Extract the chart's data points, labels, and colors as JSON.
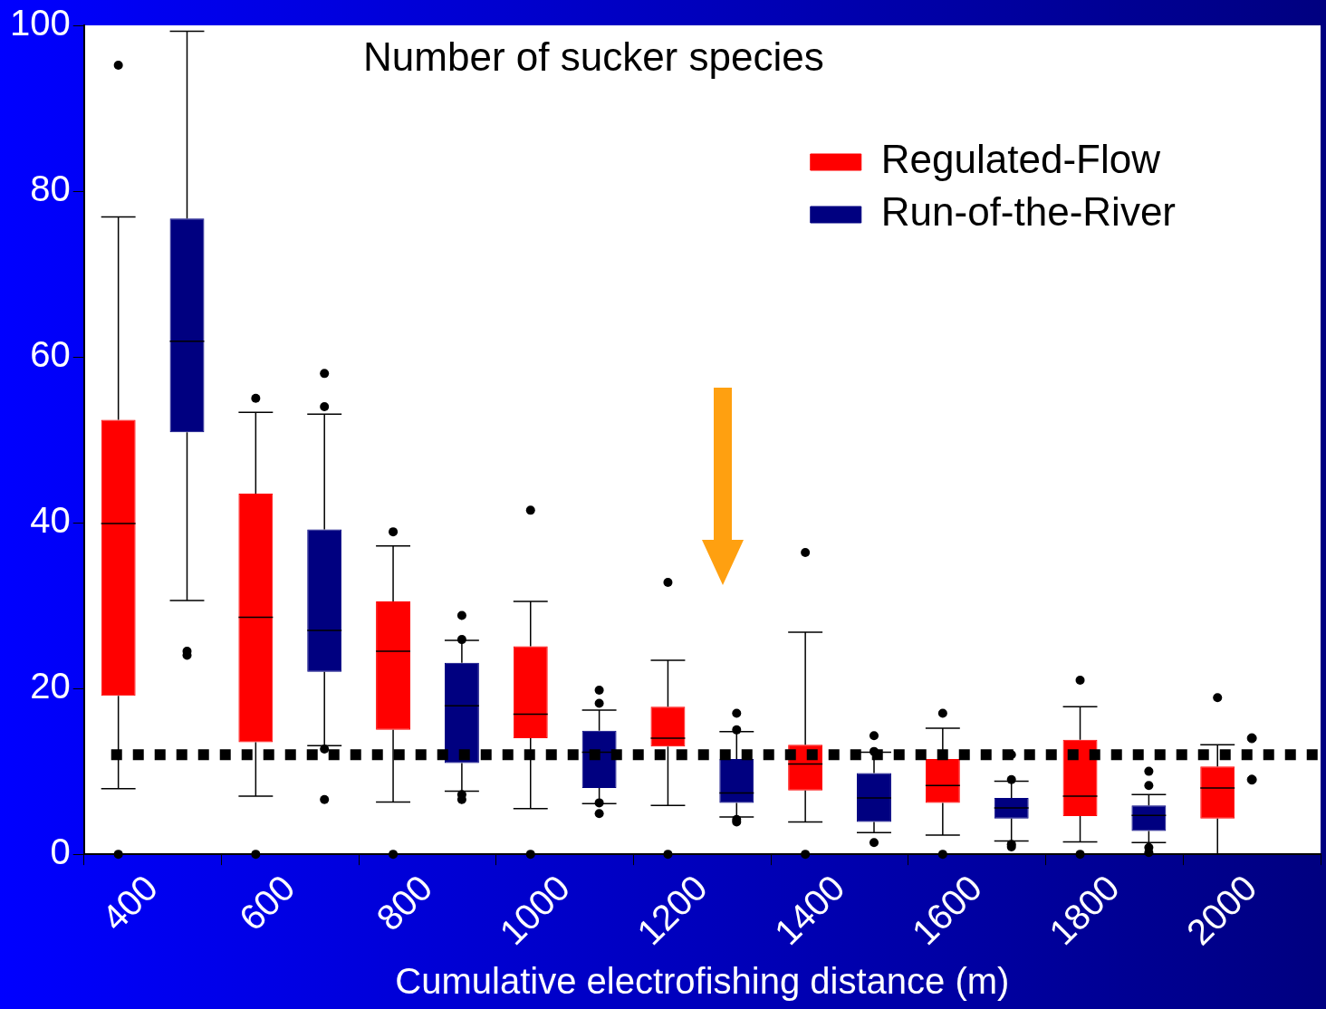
{
  "chart_data": {
    "type": "box",
    "title": "Number of sucker species",
    "xlabel": "Cumulative electrofishing distance (m)",
    "categories": [
      "400",
      "600",
      "800",
      "1000",
      "1200",
      "1400",
      "1600",
      "1800",
      "2000"
    ],
    "series": [
      {
        "name": "Regulated-Flow",
        "color": "#ff0000",
        "boxes": [
          {
            "low": 7.9,
            "q1": 19.1,
            "median": 39.9,
            "q3": 52.4,
            "high": 76.9,
            "outliers": [
              95.2,
              0
            ]
          },
          {
            "low": 7,
            "q1": 13.5,
            "median": 28.6,
            "q3": 43.5,
            "high": 53.3,
            "outliers": [
              55,
              0
            ]
          },
          {
            "low": 6.3,
            "q1": 15,
            "median": 24.5,
            "q3": 30.5,
            "high": 37.2,
            "outliers": [
              38.9,
              0
            ]
          },
          {
            "low": 5.5,
            "q1": 14,
            "median": 16.9,
            "q3": 25.1,
            "high": 30.5,
            "outliers": [
              41.5,
              0
            ]
          },
          {
            "low": 5.9,
            "q1": 13,
            "median": 14,
            "q3": 17.8,
            "high": 23.4,
            "outliers": [
              32.8,
              0
            ]
          },
          {
            "low": 3.9,
            "q1": 7.7,
            "median": 10.9,
            "q3": 13.2,
            "high": 26.8,
            "outliers": [
              36.4,
              0
            ]
          },
          {
            "low": 2.3,
            "q1": 6.2,
            "median": 8.3,
            "q3": 11.5,
            "high": 15.2,
            "outliers": [
              17,
              0
            ]
          },
          {
            "low": 1.5,
            "q1": 4.6,
            "median": 7,
            "q3": 13.8,
            "high": 17.8,
            "outliers": [
              21,
              0
            ]
          },
          {
            "low": 0,
            "q1": 4.3,
            "median": 8,
            "q3": 10.6,
            "high": 13.2,
            "outliers": [
              18.9
            ]
          }
        ]
      },
      {
        "name": "Run-of-the-River",
        "color": "#000080",
        "boxes": [
          {
            "low": 30.6,
            "q1": 50.9,
            "median": 61.9,
            "q3": 76.7,
            "high": 99.3,
            "outliers": [
              24.5,
              24
            ]
          },
          {
            "low": 13.1,
            "q1": 22,
            "median": 27,
            "q3": 39.2,
            "high": 53.1,
            "outliers": [
              58,
              54,
              12.7,
              6.6
            ]
          },
          {
            "low": 7.6,
            "q1": 11,
            "median": 17.9,
            "q3": 23.1,
            "high": 25.8,
            "outliers": [
              28.8,
              25.9,
              7.2,
              6.6
            ]
          },
          {
            "low": 6.1,
            "q1": 8,
            "median": 12.3,
            "q3": 14.9,
            "high": 17.4,
            "outliers": [
              19.8,
              18.2,
              6.2,
              4.9
            ]
          },
          {
            "low": 4.5,
            "q1": 6.2,
            "median": 7.4,
            "q3": 11.5,
            "high": 14.8,
            "outliers": [
              17,
              15,
              4.2,
              3.9
            ]
          },
          {
            "low": 2.6,
            "q1": 3.9,
            "median": 6.8,
            "q3": 9.8,
            "high": 12.3,
            "outliers": [
              14.3,
              12.4,
              1.4
            ]
          },
          {
            "low": 1.6,
            "q1": 4.3,
            "median": 5.6,
            "q3": 6.8,
            "high": 8.8,
            "outliers": [
              12,
              9,
              1.2,
              0.9
            ]
          },
          {
            "low": 1.4,
            "q1": 2.8,
            "median": 4.7,
            "q3": 5.9,
            "high": 7.2,
            "outliers": [
              10,
              8.3,
              0.8,
              0.2
            ]
          },
          null
        ]
      },
      {
        "type": "scatter",
        "color": "#000000",
        "values": [
          null,
          null,
          null,
          null,
          null,
          null,
          null,
          null,
          14
        ]
      },
      {
        "type": "scatter",
        "color": "#000000",
        "values": [
          null,
          null,
          null,
          null,
          null,
          null,
          null,
          null,
          9
        ]
      }
    ],
    "ylim": [
      0,
      100
    ],
    "yticks": [
      0,
      20,
      40,
      60,
      80,
      100
    ],
    "grid": false,
    "legend": "top right",
    "ref_lines": [
      {
        "axis": "y",
        "value": 12,
        "color": "#000000",
        "line_style": "dotted"
      }
    ]
  }
}
